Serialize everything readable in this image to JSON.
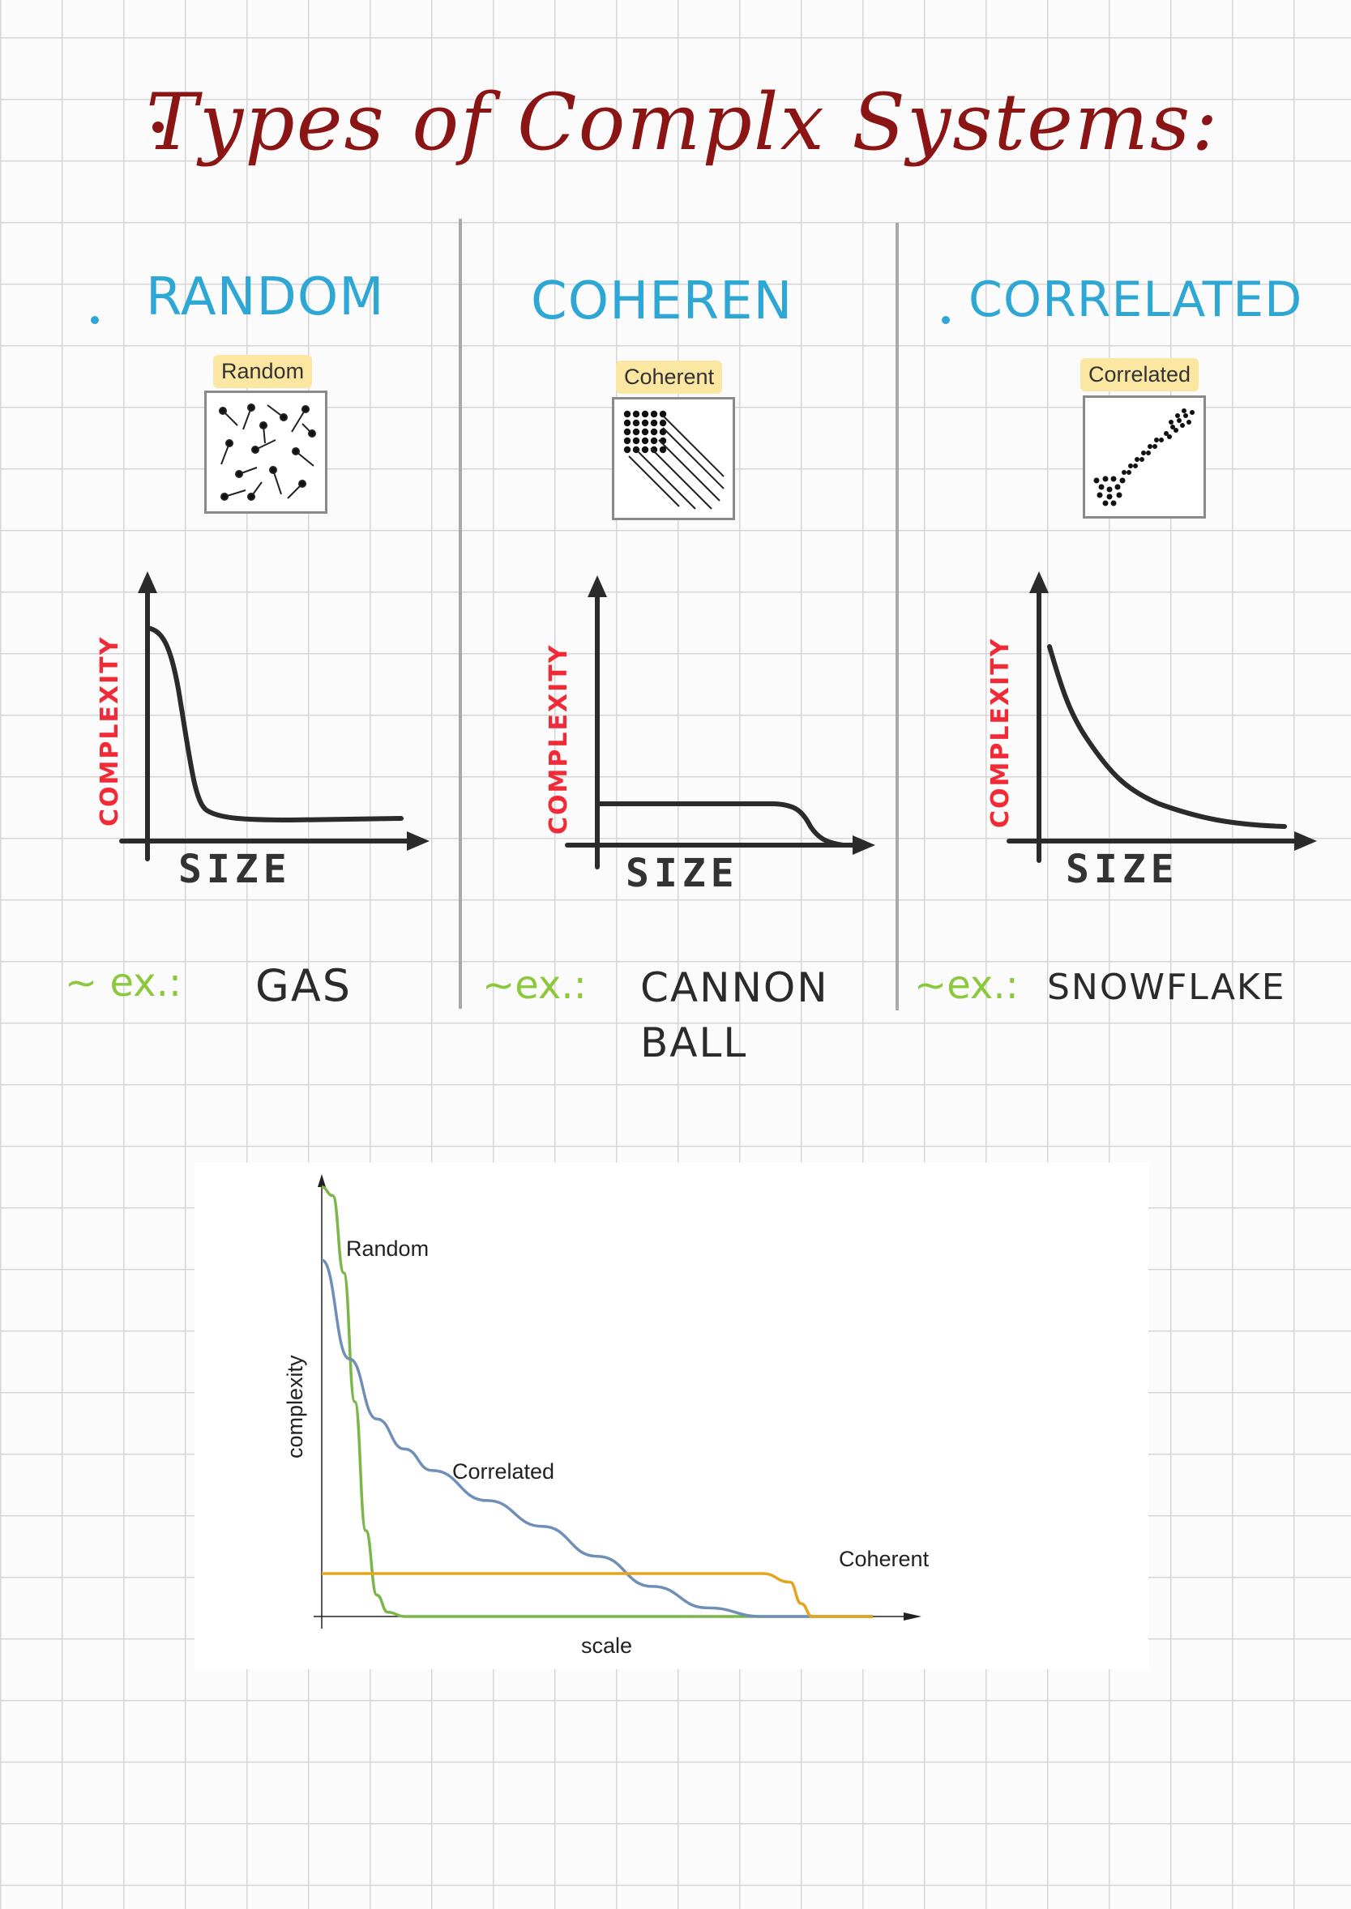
{
  "title": "Types of Complx Systems:",
  "columns": [
    {
      "heading": "RANDOM",
      "tag": "Random",
      "icon": "random-particles-icon",
      "ylabel": "COMPLEXITY",
      "xlabel": "SIZE",
      "example_prefix": "~ ex.:",
      "example": "GAS"
    },
    {
      "heading": "COHEREN",
      "tag": "Coherent",
      "icon": "coherent-lattice-icon",
      "ylabel": "COMPLEXITY",
      "xlabel": "SIZE",
      "example_prefix": "~ex.:",
      "example": "CANNON",
      "example_line2": "BALL"
    },
    {
      "heading": "CORRELATED",
      "tag": "Correlated",
      "icon": "correlated-cluster-icon",
      "ylabel": "COMPLEXITY",
      "xlabel": "SIZE",
      "example_prefix": "~ex.:",
      "example": "SNOWFLAKE"
    }
  ],
  "colors": {
    "title": "#8b1414",
    "heading": "#2ea7d5",
    "axis_label": "#f02b37",
    "example_prefix": "#8cc83c",
    "random": "#7ab648",
    "correlated": "#6f8fb8",
    "coherent": "#e3a51e"
  },
  "chart_data": {
    "type": "line",
    "xlabel": "scale",
    "ylabel": "complexity",
    "xlim": [
      0,
      1
    ],
    "ylim": [
      0,
      1
    ],
    "series": [
      {
        "name": "Random",
        "x": [
          0,
          0.02,
          0.04,
          0.06,
          0.08,
          0.1,
          0.12,
          0.15,
          0.2,
          1.0
        ],
        "y": [
          1.0,
          0.98,
          0.8,
          0.5,
          0.2,
          0.05,
          0.01,
          0.0,
          0.0,
          0.0
        ]
      },
      {
        "name": "Correlated",
        "x": [
          0,
          0.05,
          0.1,
          0.15,
          0.2,
          0.3,
          0.4,
          0.5,
          0.6,
          0.7,
          0.8,
          1.0
        ],
        "y": [
          0.83,
          0.6,
          0.46,
          0.39,
          0.34,
          0.27,
          0.21,
          0.14,
          0.07,
          0.02,
          0.0,
          0.0
        ]
      },
      {
        "name": "Coherent",
        "x": [
          0,
          0.2,
          0.4,
          0.6,
          0.8,
          0.85,
          0.87,
          0.89,
          1.0
        ],
        "y": [
          0.1,
          0.1,
          0.1,
          0.1,
          0.1,
          0.08,
          0.03,
          0.0,
          0.0
        ]
      }
    ],
    "grid": false,
    "legend": "inline"
  },
  "sketch_data": [
    {
      "type": "line",
      "xlabel": "SIZE",
      "ylabel": "COMPLEXITY",
      "x": [
        0,
        0.05,
        0.1,
        0.15,
        0.2,
        0.3,
        1.0
      ],
      "y": [
        1.0,
        0.95,
        0.6,
        0.1,
        0.05,
        0.04,
        0.05
      ]
    },
    {
      "type": "line",
      "xlabel": "SIZE",
      "ylabel": "COMPLEXITY",
      "x": [
        0,
        0.7,
        0.8,
        0.9,
        1.0
      ],
      "y": [
        0.2,
        0.2,
        0.18,
        0.08,
        0.02
      ]
    },
    {
      "type": "line",
      "xlabel": "SIZE",
      "ylabel": "COMPLEXITY",
      "x": [
        0,
        0.1,
        0.25,
        0.45,
        0.7,
        1.0
      ],
      "y": [
        0.95,
        0.7,
        0.4,
        0.2,
        0.08,
        0.06
      ]
    }
  ]
}
